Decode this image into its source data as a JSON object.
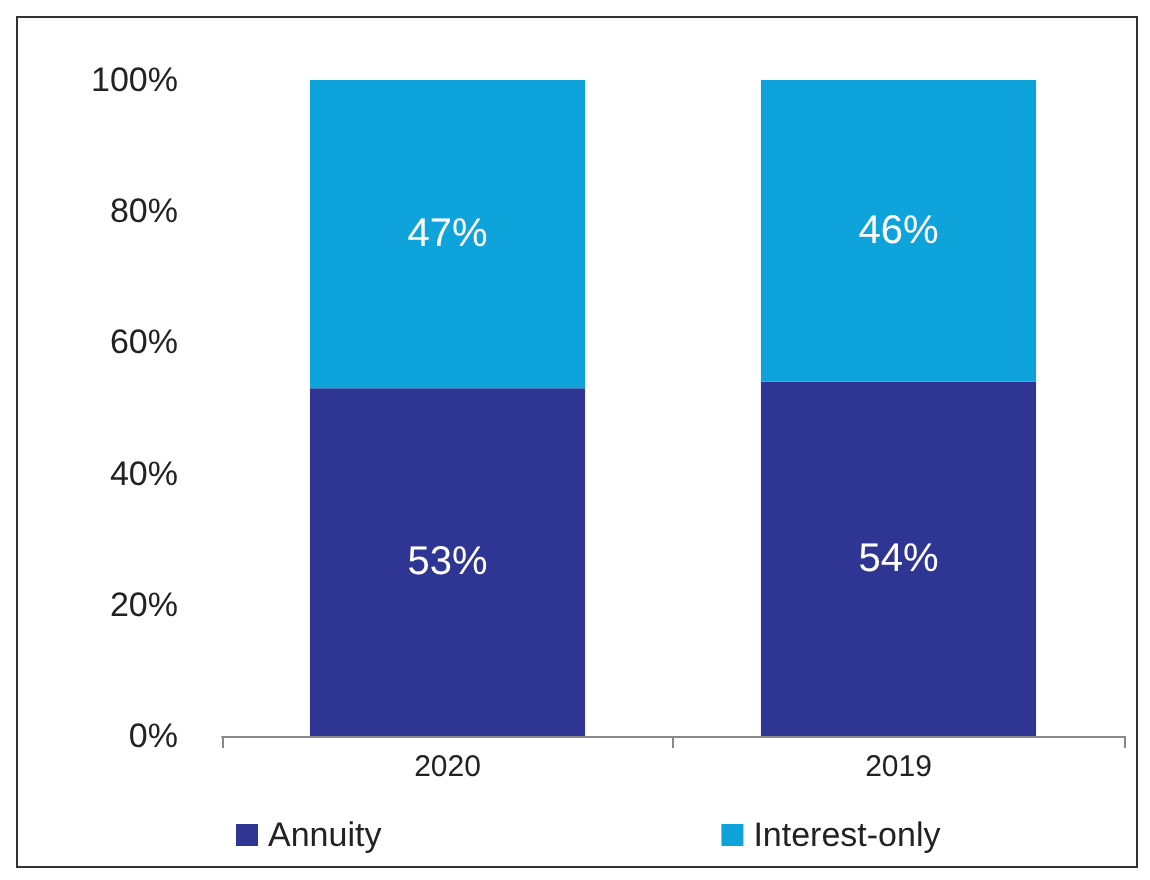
{
  "chart_data": {
    "type": "bar",
    "stacked": true,
    "categories": [
      "2020",
      "2019"
    ],
    "series": [
      {
        "name": "Annuity",
        "color": "#2e3592",
        "values": [
          53,
          54
        ],
        "value_labels": [
          "53%",
          "54%"
        ]
      },
      {
        "name": "Interest-only",
        "color": "#0fa3dc",
        "values": [
          47,
          46
        ],
        "value_labels": [
          "47%",
          "46%"
        ]
      }
    ],
    "ylim": [
      0,
      100
    ],
    "yticks": [
      {
        "value": 0,
        "label": "0%"
      },
      {
        "value": 20,
        "label": "20%"
      },
      {
        "value": 40,
        "label": "40%"
      },
      {
        "value": 60,
        "label": "60%"
      },
      {
        "value": 80,
        "label": "80%"
      },
      {
        "value": 100,
        "label": "100%"
      }
    ],
    "grid": false,
    "legend": "bottom left"
  }
}
